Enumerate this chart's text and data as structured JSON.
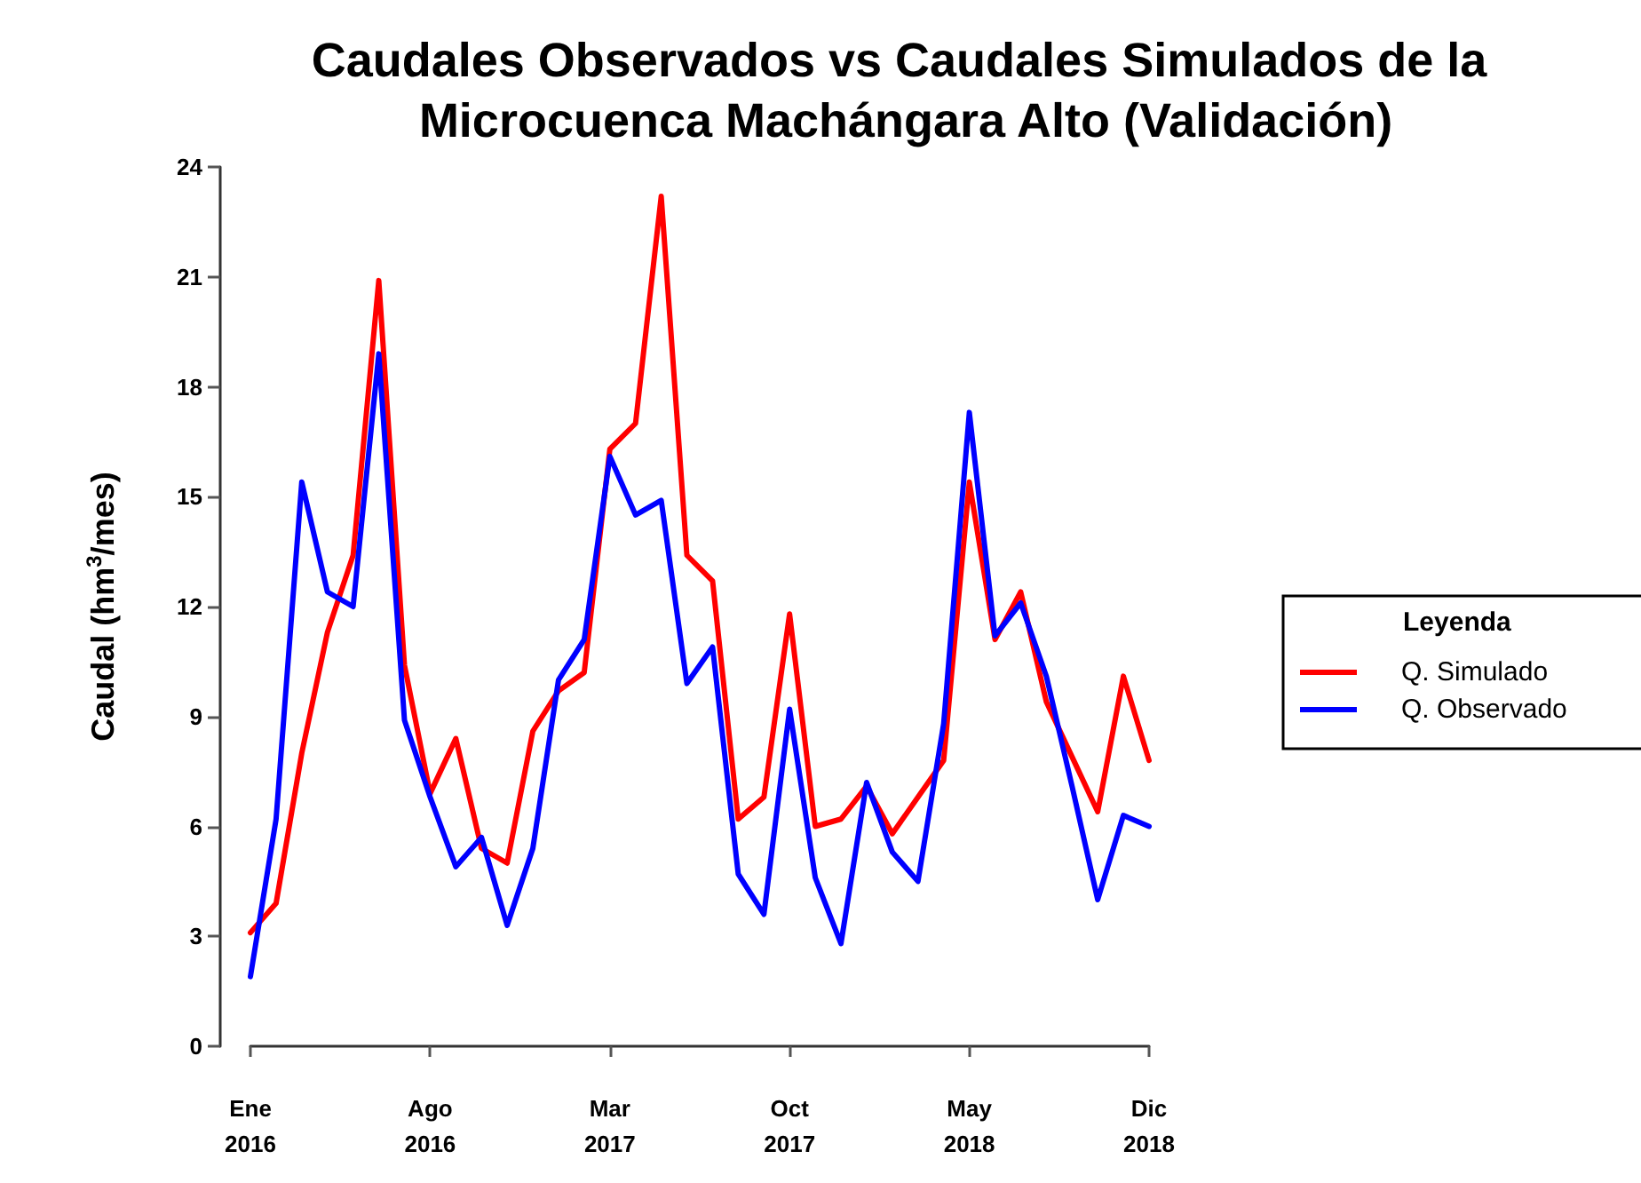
{
  "chart_data": {
    "type": "line",
    "title": "Caudales Observados vs Caudales Simulados de la Microcuenca Machángara Alto (Validación)",
    "ylabel": "Caudal (hm$^{3}$/mes)",
    "legend_title": "Leyenda",
    "categories": [
      "Ene\n2016",
      null,
      null,
      null,
      null,
      null,
      null,
      "Ago\n2016",
      null,
      null,
      null,
      null,
      null,
      null,
      "Mar\n2017",
      null,
      null,
      null,
      null,
      null,
      null,
      "Oct\n2017",
      null,
      null,
      null,
      null,
      null,
      null,
      "May\n2018",
      null,
      null,
      null,
      null,
      null,
      null,
      "Dic\n2018"
    ],
    "series": [
      {
        "name": "Q. Simulado",
        "color": "#ff0000",
        "values": [
          3.1,
          3.9,
          8.0,
          11.3,
          13.4,
          20.9,
          10.4,
          6.9,
          8.4,
          5.4,
          5.0,
          8.6,
          9.7,
          10.2,
          16.3,
          17.0,
          23.2,
          13.4,
          12.7,
          6.2,
          6.8,
          11.8,
          6.0,
          6.2,
          7.1,
          5.8,
          6.8,
          7.8,
          15.4,
          11.1,
          12.4,
          9.4,
          7.9,
          6.4,
          10.1,
          7.8
        ]
      },
      {
        "name": "Q. Observado",
        "color": "#0000ff",
        "values": [
          1.9,
          6.2,
          15.4,
          12.4,
          12.0,
          18.9,
          8.9,
          6.8,
          4.9,
          5.7,
          3.3,
          5.4,
          10.0,
          11.1,
          16.1,
          14.5,
          14.9,
          9.9,
          10.9,
          4.7,
          3.6,
          9.2,
          4.6,
          2.8,
          7.2,
          5.3,
          4.5,
          8.8,
          17.3,
          11.2,
          12.1,
          10.1,
          7.1,
          4.0,
          6.3,
          6.0
        ]
      }
    ],
    "ylim": [
      0,
      24
    ],
    "yticks": [
      0,
      3,
      6,
      9,
      12,
      15,
      18,
      21,
      24
    ],
    "grid": false,
    "legend": "right",
    "marker": "none",
    "line_style": "solid"
  }
}
